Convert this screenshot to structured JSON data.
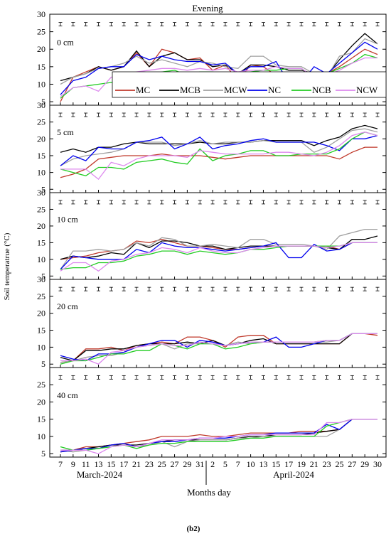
{
  "figure": {
    "title": "Evening",
    "ylabel": "Soil temperatrue (°C)",
    "xlabel": "Months day",
    "month_labels": [
      "March-2024",
      "April-2024"
    ],
    "caption": "(b2)"
  },
  "series_style": [
    {
      "name": "MC",
      "color": "#c0392b"
    },
    {
      "name": "MCB",
      "color": "#000000"
    },
    {
      "name": "MCW",
      "color": "#a0a0a0"
    },
    {
      "name": "NC",
      "color": "#0000ee"
    },
    {
      "name": "NCB",
      "color": "#22cc22"
    },
    {
      "name": "NCW",
      "color": "#dd88ee"
    }
  ],
  "chart_data": [
    {
      "type": "line",
      "label": "0 cm",
      "ylim": [
        4,
        30
      ],
      "yticks": [
        5,
        10,
        15,
        20,
        25,
        30
      ],
      "x": [
        "7",
        "9",
        "11",
        "13",
        "15",
        "17",
        "21",
        "23",
        "25",
        "27",
        "29",
        "31",
        "2",
        "5",
        "7",
        "10",
        "13",
        "15",
        "17",
        "19",
        "21",
        "23",
        "25",
        "27",
        "29",
        "30"
      ],
      "series": [
        {
          "name": "MC",
          "values": [
            5,
            12,
            13.5,
            15,
            14,
            15,
            19,
            15,
            20,
            19,
            17,
            17.5,
            14,
            15.5,
            11,
            15.5,
            15,
            12.5,
            12.5,
            12.5,
            12.5,
            13,
            15,
            17.5,
            20,
            18.5
          ]
        },
        {
          "name": "MCB",
          "values": [
            11,
            12,
            13,
            15,
            14,
            15,
            19.5,
            15,
            18,
            19,
            17,
            17,
            15,
            15.5,
            13,
            15.5,
            15.5,
            15,
            14,
            14,
            13,
            12.5,
            17,
            21,
            24.5,
            21.5
          ]
        },
        {
          "name": "MCW",
          "values": [
            10,
            12,
            13,
            14.5,
            15,
            16,
            18,
            16,
            17,
            16,
            15,
            16.5,
            16,
            15,
            14.5,
            18,
            18,
            15.5,
            15,
            15,
            13,
            12,
            18,
            19,
            23,
            21.5
          ]
        },
        {
          "name": "NC",
          "values": [
            7,
            11,
            12,
            14.5,
            15,
            15,
            18.5,
            17,
            18,
            17,
            16.5,
            16.5,
            15.5,
            16,
            13,
            15,
            15,
            16.5,
            10.5,
            10.5,
            15,
            13,
            16,
            19,
            22,
            20
          ]
        },
        {
          "name": "NCB",
          "values": [
            6,
            9,
            9.5,
            10,
            10.5,
            11,
            12.5,
            12,
            13.5,
            14,
            12.5,
            13.5,
            13.5,
            12.5,
            12.5,
            13.5,
            14,
            14,
            14.5,
            14.5,
            12,
            13,
            14.5,
            16,
            18.5,
            17.5
          ]
        },
        {
          "name": "NCW",
          "values": [
            6.5,
            9,
            9.5,
            8,
            12,
            12.5,
            13.5,
            14,
            14.5,
            14.5,
            14,
            14.5,
            14,
            14.5,
            13.5,
            14,
            14,
            15,
            14.5,
            14.5,
            12,
            12.5,
            14,
            16,
            17.5,
            17.5
          ]
        }
      ]
    },
    {
      "type": "line",
      "label": "5 cm",
      "ylim": [
        4,
        30
      ],
      "yticks": [
        5,
        10,
        15,
        20,
        25,
        30
      ],
      "x": [
        "7",
        "9",
        "11",
        "13",
        "15",
        "17",
        "21",
        "23",
        "25",
        "27",
        "29",
        "31",
        "2",
        "5",
        "7",
        "10",
        "13",
        "15",
        "17",
        "19",
        "21",
        "23",
        "25",
        "27",
        "29",
        "30"
      ],
      "series": [
        {
          "name": "MC",
          "values": [
            8.5,
            9.5,
            11,
            14,
            14.5,
            15,
            15,
            15,
            15.5,
            15,
            15,
            15,
            14.5,
            14,
            14.5,
            15,
            15,
            15,
            15,
            15,
            15,
            15,
            14,
            16,
            17.5,
            17.5
          ]
        },
        {
          "name": "MCB",
          "values": [
            16,
            17,
            16,
            17.5,
            17.5,
            18.5,
            19,
            18.5,
            18.5,
            18.5,
            18.5,
            19,
            18.5,
            18.5,
            19,
            19,
            19.5,
            19.5,
            19.5,
            19.5,
            18,
            19.5,
            20.5,
            23,
            24,
            23
          ]
        },
        {
          "name": "MCW",
          "values": [
            12,
            14,
            15,
            15.5,
            16,
            17,
            19,
            19,
            19,
            18,
            18.5,
            19.5,
            18.5,
            19,
            19,
            19,
            19.5,
            19,
            19,
            19,
            16,
            17.5,
            20,
            22.5,
            23,
            22
          ]
        },
        {
          "name": "NC",
          "values": [
            12,
            15,
            13.5,
            17.5,
            17,
            17,
            19,
            19.5,
            20.5,
            17,
            18.5,
            20.5,
            17,
            18,
            18.5,
            19.5,
            20,
            19,
            19,
            19,
            19,
            18,
            16.5,
            20,
            20,
            21
          ]
        },
        {
          "name": "NCB",
          "values": [
            11,
            10,
            9,
            11.5,
            11.5,
            11,
            13,
            13.5,
            14,
            13,
            12.5,
            17,
            13.5,
            15,
            15.5,
            16.5,
            16.5,
            15,
            15,
            15.5,
            15.5,
            15.5,
            17,
            20,
            22,
            21
          ]
        },
        {
          "name": "NCW",
          "values": [
            11,
            11,
            11,
            8,
            13,
            12,
            14,
            15,
            15,
            15,
            14.5,
            16.5,
            16,
            15.5,
            15.5,
            15.5,
            15.5,
            16,
            16,
            15.5,
            15,
            16,
            18,
            21,
            22,
            21
          ]
        }
      ]
    },
    {
      "type": "line",
      "label": "10 cm",
      "ylim": [
        4,
        30
      ],
      "yticks": [
        5,
        10,
        15,
        20,
        25,
        30
      ],
      "x": [
        "7",
        "9",
        "11",
        "13",
        "15",
        "17",
        "21",
        "23",
        "25",
        "27",
        "29",
        "31",
        "2",
        "5",
        "7",
        "10",
        "13",
        "15",
        "17",
        "19",
        "21",
        "23",
        "25",
        "27",
        "29",
        "30"
      ],
      "series": [
        {
          "name": "MC",
          "values": [
            10,
            10.5,
            11,
            12,
            12.5,
            13,
            15.5,
            15,
            16,
            15,
            14,
            14,
            13.5,
            13,
            13,
            13.5,
            14,
            14,
            14,
            14,
            14,
            14,
            13,
            15,
            15,
            15
          ]
        },
        {
          "name": "MCB",
          "values": [
            10,
            11,
            10.5,
            11,
            12,
            11.5,
            15,
            13.5,
            15.5,
            15.5,
            15,
            14,
            14,
            13,
            13.5,
            14,
            14,
            14,
            14,
            14,
            14,
            13.5,
            13,
            16,
            16,
            17
          ]
        },
        {
          "name": "MCW",
          "values": [
            7,
            12.5,
            12.5,
            13,
            12.5,
            13,
            15,
            14,
            16.5,
            16,
            14,
            14,
            14.5,
            14,
            13.5,
            16,
            16,
            14.5,
            14.5,
            14.5,
            14,
            13,
            17,
            18,
            19,
            19
          ]
        },
        {
          "name": "NC",
          "values": [
            7,
            11,
            10.5,
            10,
            10,
            10,
            13,
            12,
            15,
            14,
            13.5,
            13.5,
            13,
            12.5,
            13,
            13.5,
            14,
            15,
            10.5,
            10.5,
            14.5,
            12.5,
            13,
            15,
            15,
            15
          ]
        },
        {
          "name": "NCB",
          "values": [
            7,
            7.5,
            7.5,
            9,
            9,
            9.5,
            11,
            11.5,
            12.5,
            12.5,
            11.5,
            12.5,
            12,
            11.5,
            12,
            13,
            13,
            13.5,
            14,
            14,
            14,
            14,
            14,
            15,
            15,
            15
          ]
        },
        {
          "name": "NCW",
          "values": [
            6.5,
            9,
            9,
            6.5,
            9.5,
            10,
            11.5,
            12,
            13.5,
            13,
            12,
            13.5,
            12.5,
            12,
            12,
            13,
            13.5,
            14,
            14,
            14,
            14,
            13.5,
            14,
            15,
            15,
            15
          ]
        }
      ]
    },
    {
      "type": "line",
      "label": "20 cm",
      "ylim": [
        4,
        30
      ],
      "yticks": [
        5,
        10,
        15,
        20,
        25,
        30
      ],
      "x": [
        "7",
        "9",
        "11",
        "13",
        "15",
        "17",
        "21",
        "23",
        "25",
        "27",
        "29",
        "31",
        "2",
        "5",
        "7",
        "10",
        "13",
        "15",
        "17",
        "19",
        "21",
        "23",
        "25",
        "27",
        "29",
        "30"
      ],
      "series": [
        {
          "name": "MC",
          "values": [
            5.5,
            6,
            9.5,
            9.5,
            10,
            9,
            10.5,
            11,
            11.5,
            11,
            13,
            13,
            12,
            10,
            13,
            13.5,
            13.5,
            11,
            11,
            11,
            11,
            11,
            11,
            14,
            14,
            13.5
          ]
        },
        {
          "name": "MCB",
          "values": [
            7,
            6,
            9,
            9,
            9.5,
            9.5,
            10.5,
            11,
            11,
            11,
            11.5,
            11,
            12,
            10.5,
            11,
            12,
            12.5,
            11,
            11,
            11,
            11,
            11,
            11,
            14,
            14,
            14
          ]
        },
        {
          "name": "MCW",
          "values": [
            5.5,
            6,
            7,
            7.5,
            7.5,
            8.5,
            10,
            10.5,
            11,
            9.5,
            11,
            11,
            11,
            10.5,
            11.5,
            11,
            11.5,
            11.5,
            11.5,
            11.5,
            11.5,
            11.5,
            12,
            14,
            14,
            14
          ]
        },
        {
          "name": "NC",
          "values": [
            7.5,
            6.5,
            6,
            8,
            8,
            8.5,
            10,
            11,
            12,
            12,
            10,
            12,
            11.5,
            10.5,
            11,
            11.5,
            11.5,
            13,
            10,
            10,
            11,
            12,
            12,
            14,
            14,
            14
          ]
        },
        {
          "name": "NCB",
          "values": [
            5,
            6,
            6,
            7,
            8,
            8,
            9,
            9,
            11,
            10.5,
            9.5,
            11,
            11,
            9.5,
            10,
            11,
            11.5,
            11.5,
            11.5,
            11.5,
            11.5,
            12,
            12,
            14,
            14,
            14
          ]
        },
        {
          "name": "NCW",
          "values": [
            6,
            6,
            6.5,
            5,
            8.5,
            9,
            10,
            10.5,
            11,
            10.5,
            10.5,
            11.5,
            11,
            10.5,
            11,
            11.5,
            11.5,
            11.5,
            11.5,
            11.5,
            11.5,
            12,
            12,
            14,
            14,
            14
          ]
        }
      ]
    },
    {
      "type": "line",
      "label": "40 cm",
      "ylim": [
        4,
        30
      ],
      "yticks": [
        5,
        10,
        15,
        20,
        25
      ],
      "x": [
        "7",
        "9",
        "11",
        "13",
        "15",
        "17",
        "21",
        "23",
        "25",
        "27",
        "29",
        "31",
        "2",
        "5",
        "7",
        "10",
        "13",
        "15",
        "17",
        "19",
        "21",
        "23",
        "25",
        "27",
        "29",
        "30"
      ],
      "series": [
        {
          "name": "MC",
          "values": [
            5.5,
            6,
            7,
            7,
            7.5,
            8,
            8.5,
            9,
            10,
            10,
            10,
            10.5,
            10,
            10,
            10.5,
            11,
            11,
            11,
            11,
            11.5,
            11.5,
            11.5,
            12,
            15,
            15,
            15
          ]
        },
        {
          "name": "MCB",
          "values": [
            6,
            6,
            6.5,
            7,
            7.5,
            7.5,
            7.5,
            8,
            8.5,
            9,
            9,
            9,
            9,
            9,
            9.5,
            10,
            10,
            10.5,
            10.5,
            10.5,
            11,
            11.5,
            12,
            15,
            15,
            15
          ]
        },
        {
          "name": "MCW",
          "values": [
            6,
            5.5,
            6,
            6.5,
            7,
            7.5,
            7,
            7.5,
            8.5,
            7,
            8.5,
            9,
            9,
            9,
            9.5,
            9.5,
            10,
            10,
            10,
            10,
            10,
            10,
            12,
            15,
            15,
            15
          ]
        },
        {
          "name": "NC",
          "values": [
            5.5,
            6,
            6.5,
            6.5,
            7.5,
            8,
            7,
            8,
            8.5,
            8.5,
            9,
            9.5,
            9.5,
            9.5,
            10,
            10.5,
            10.5,
            11,
            11,
            11,
            11,
            13.5,
            12,
            15,
            15,
            15
          ]
        },
        {
          "name": "NCB",
          "values": [
            7,
            6,
            6,
            6.5,
            7,
            7.5,
            6.5,
            7.5,
            8,
            8,
            8.5,
            8.5,
            8.5,
            8.5,
            9,
            9.5,
            9.5,
            10,
            10,
            10,
            10,
            13,
            14,
            15,
            15,
            15
          ]
        },
        {
          "name": "NCW",
          "values": [
            6,
            6,
            6,
            5,
            7,
            7.5,
            7,
            8,
            9,
            9,
            9,
            9.5,
            9.5,
            10,
            10,
            10.5,
            10.5,
            10.5,
            10.5,
            10.5,
            10.5,
            14,
            14,
            15,
            15,
            15
          ]
        }
      ]
    }
  ]
}
